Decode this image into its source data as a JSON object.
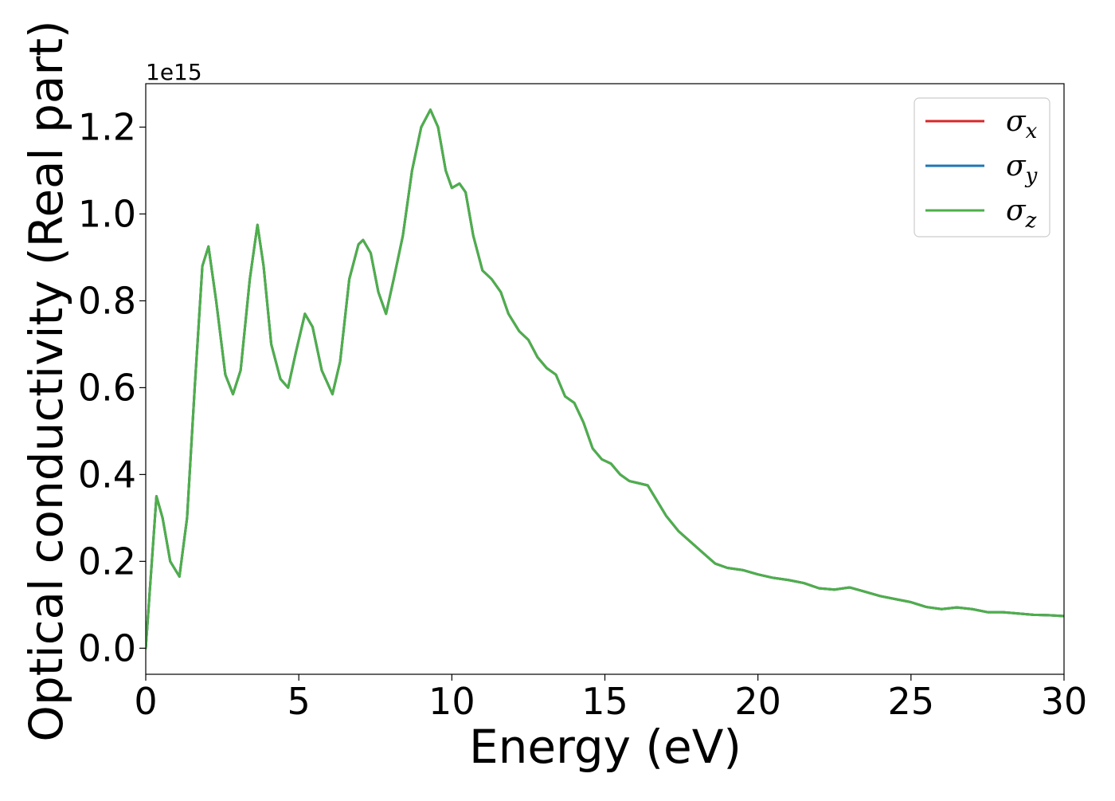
{
  "chart_data": {
    "type": "line",
    "xlabel": "Energy (eV)",
    "ylabel": "Optical conductivity (Real part)",
    "y_offset_label": "1e15",
    "y_multiplier": 1000000000000000.0,
    "xlim": [
      0,
      30
    ],
    "ylim": [
      -0.06,
      1.3
    ],
    "xticks": [
      0,
      5,
      10,
      15,
      20,
      25,
      30
    ],
    "xtick_labels": [
      "0",
      "5",
      "10",
      "15",
      "20",
      "25",
      "30"
    ],
    "yticks": [
      0.0,
      0.2,
      0.4,
      0.6,
      0.8,
      1.0,
      1.2
    ],
    "ytick_labels": [
      "0.0",
      "0.2",
      "0.4",
      "0.6",
      "0.8",
      "1.0",
      "1.2"
    ],
    "grid": false,
    "legend_position": "top-right",
    "x": [
      0,
      0.15,
      0.35,
      0.55,
      0.8,
      1.1,
      1.35,
      1.6,
      1.85,
      2.05,
      2.3,
      2.6,
      2.85,
      3.1,
      3.4,
      3.65,
      3.85,
      4.1,
      4.4,
      4.65,
      4.9,
      5.2,
      5.45,
      5.75,
      6.1,
      6.35,
      6.65,
      6.95,
      7.1,
      7.35,
      7.6,
      7.85,
      8.1,
      8.4,
      8.7,
      9.0,
      9.3,
      9.55,
      9.8,
      10.0,
      10.25,
      10.45,
      10.7,
      11.0,
      11.3,
      11.6,
      11.85,
      12.2,
      12.5,
      12.8,
      13.1,
      13.4,
      13.7,
      14.0,
      14.3,
      14.6,
      14.9,
      15.2,
      15.5,
      15.8,
      16.1,
      16.4,
      16.7,
      17.0,
      17.4,
      17.8,
      18.2,
      18.6,
      19.0,
      19.5,
      20.0,
      20.5,
      21.0,
      21.5,
      22.0,
      22.5,
      23.0,
      23.5,
      24.0,
      24.5,
      25.0,
      25.5,
      26.0,
      26.5,
      27.0,
      27.5,
      28.0,
      28.5,
      29.0,
      29.5,
      30.0
    ],
    "series": [
      {
        "name": "σx",
        "legend_main": "σ",
        "legend_sub": "x",
        "color": "#d62728",
        "values": [
          0.0,
          0.15,
          0.35,
          0.3,
          0.2,
          0.165,
          0.3,
          0.6,
          0.88,
          0.925,
          0.8,
          0.63,
          0.585,
          0.64,
          0.85,
          0.975,
          0.88,
          0.7,
          0.62,
          0.6,
          0.68,
          0.77,
          0.74,
          0.64,
          0.585,
          0.66,
          0.85,
          0.93,
          0.94,
          0.91,
          0.82,
          0.77,
          0.85,
          0.95,
          1.1,
          1.2,
          1.24,
          1.2,
          1.1,
          1.06,
          1.07,
          1.05,
          0.95,
          0.87,
          0.85,
          0.82,
          0.77,
          0.73,
          0.71,
          0.67,
          0.645,
          0.63,
          0.58,
          0.565,
          0.52,
          0.46,
          0.435,
          0.425,
          0.4,
          0.385,
          0.38,
          0.375,
          0.34,
          0.305,
          0.27,
          0.245,
          0.22,
          0.195,
          0.185,
          0.18,
          0.17,
          0.162,
          0.157,
          0.15,
          0.138,
          0.135,
          0.14,
          0.13,
          0.12,
          0.113,
          0.106,
          0.095,
          0.09,
          0.094,
          0.09,
          0.083,
          0.083,
          0.08,
          0.077,
          0.076,
          0.074
        ]
      },
      {
        "name": "σy",
        "legend_main": "σ",
        "legend_sub": "y",
        "color": "#1f77b4",
        "values": [
          0.0,
          0.15,
          0.35,
          0.3,
          0.2,
          0.165,
          0.3,
          0.6,
          0.88,
          0.925,
          0.8,
          0.63,
          0.585,
          0.64,
          0.85,
          0.975,
          0.88,
          0.7,
          0.62,
          0.6,
          0.68,
          0.77,
          0.74,
          0.64,
          0.585,
          0.66,
          0.85,
          0.93,
          0.94,
          0.91,
          0.82,
          0.77,
          0.85,
          0.95,
          1.1,
          1.2,
          1.24,
          1.2,
          1.1,
          1.06,
          1.07,
          1.05,
          0.95,
          0.87,
          0.85,
          0.82,
          0.77,
          0.73,
          0.71,
          0.67,
          0.645,
          0.63,
          0.58,
          0.565,
          0.52,
          0.46,
          0.435,
          0.425,
          0.4,
          0.385,
          0.38,
          0.375,
          0.34,
          0.305,
          0.27,
          0.245,
          0.22,
          0.195,
          0.185,
          0.18,
          0.17,
          0.162,
          0.157,
          0.15,
          0.138,
          0.135,
          0.14,
          0.13,
          0.12,
          0.113,
          0.106,
          0.095,
          0.09,
          0.094,
          0.09,
          0.083,
          0.083,
          0.08,
          0.077,
          0.076,
          0.074
        ]
      },
      {
        "name": "σz",
        "legend_main": "σ",
        "legend_sub": "z",
        "color": "#4daf4a",
        "values": [
          0.0,
          0.15,
          0.35,
          0.3,
          0.2,
          0.165,
          0.3,
          0.6,
          0.88,
          0.925,
          0.8,
          0.63,
          0.585,
          0.64,
          0.85,
          0.975,
          0.88,
          0.7,
          0.62,
          0.6,
          0.68,
          0.77,
          0.74,
          0.64,
          0.585,
          0.66,
          0.85,
          0.93,
          0.94,
          0.91,
          0.82,
          0.77,
          0.85,
          0.95,
          1.1,
          1.2,
          1.24,
          1.2,
          1.1,
          1.06,
          1.07,
          1.05,
          0.95,
          0.87,
          0.85,
          0.82,
          0.77,
          0.73,
          0.71,
          0.67,
          0.645,
          0.63,
          0.58,
          0.565,
          0.52,
          0.46,
          0.435,
          0.425,
          0.4,
          0.385,
          0.38,
          0.375,
          0.34,
          0.305,
          0.27,
          0.245,
          0.22,
          0.195,
          0.185,
          0.18,
          0.17,
          0.162,
          0.157,
          0.15,
          0.138,
          0.135,
          0.14,
          0.13,
          0.12,
          0.113,
          0.106,
          0.095,
          0.09,
          0.094,
          0.09,
          0.083,
          0.083,
          0.08,
          0.077,
          0.076,
          0.074
        ]
      }
    ]
  }
}
